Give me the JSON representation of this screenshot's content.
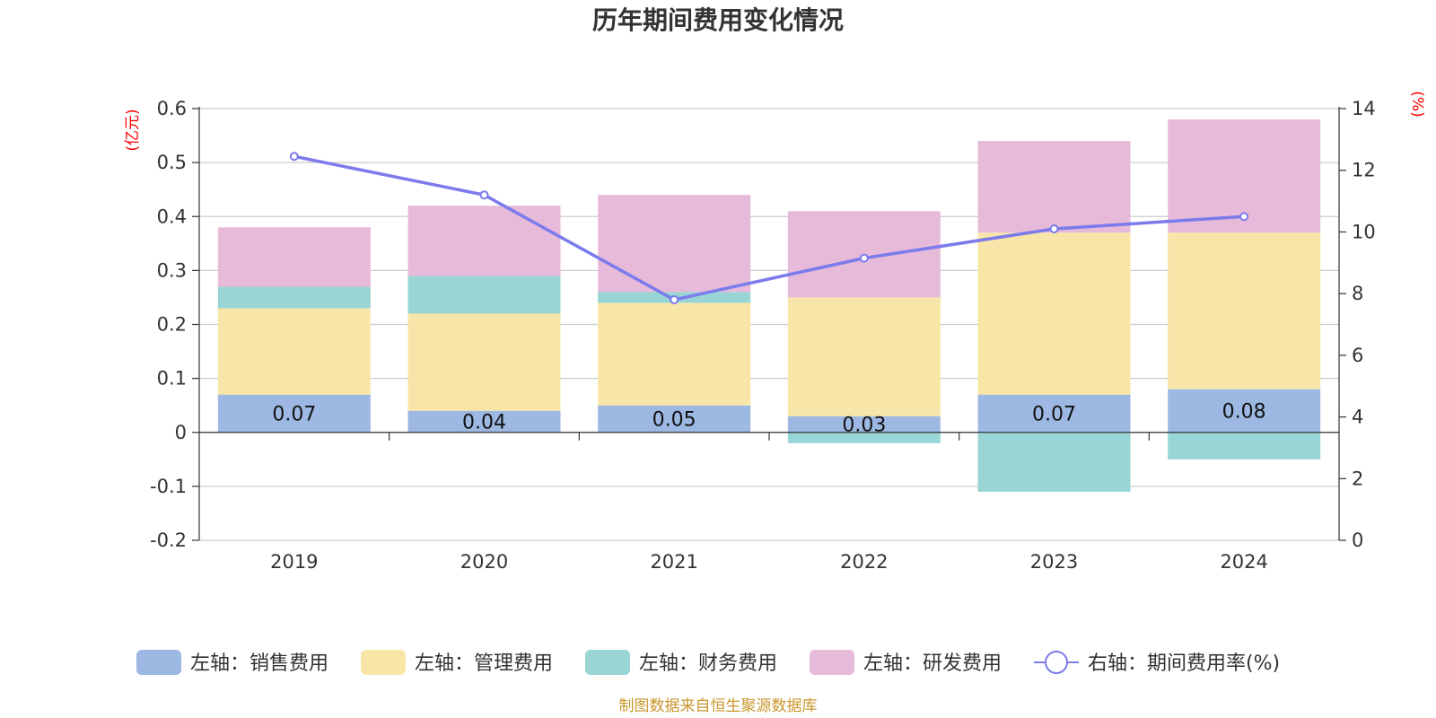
{
  "chart_data": {
    "type": "bar",
    "title": "历年期间费用变化情况",
    "categories": [
      "2019",
      "2020",
      "2021",
      "2022",
      "2023",
      "2024"
    ],
    "left_axis": {
      "unit": "(亿元)",
      "ylim": [
        -0.2,
        0.6
      ],
      "ticks": [
        -0.2,
        -0.1,
        0,
        0.1,
        0.2,
        0.3,
        0.4,
        0.5,
        0.6
      ],
      "tick_labels": [
        "-0.2",
        "-0.1",
        "0",
        "0.1",
        "0.2",
        "0.3",
        "0.4",
        "0.5",
        "0.6"
      ]
    },
    "right_axis": {
      "unit": "(%)",
      "ylim": [
        0,
        14
      ],
      "ticks": [
        0,
        2,
        4,
        6,
        8,
        10,
        12,
        14
      ],
      "tick_labels": [
        "0",
        "2",
        "4",
        "6",
        "8",
        "10",
        "12",
        "14"
      ]
    },
    "series": [
      {
        "name": "左轴：销售费用",
        "kind": "bar",
        "color": "#9db8e2",
        "values": [
          0.07,
          0.04,
          0.05,
          0.03,
          0.07,
          0.08
        ],
        "labels": [
          "0.07",
          "0.04",
          "0.05",
          "0.03",
          "0.07",
          "0.08"
        ]
      },
      {
        "name": "左轴：管理费用",
        "kind": "bar",
        "color": "#f8e6a8",
        "values": [
          0.16,
          0.18,
          0.19,
          0.22,
          0.3,
          0.29
        ]
      },
      {
        "name": "左轴：财务费用",
        "kind": "bar",
        "color": "#98d5d4",
        "values": [
          0.04,
          0.07,
          0.02,
          -0.02,
          -0.11,
          -0.05
        ]
      },
      {
        "name": "左轴：研发费用",
        "kind": "bar",
        "color": "#e8bada",
        "values": [
          0.11,
          0.13,
          0.18,
          0.16,
          0.17,
          0.21
        ]
      },
      {
        "name": "右轴：期间费用率(%)",
        "kind": "line",
        "axis": "right",
        "color": "#7b7bec",
        "values": [
          12.45,
          11.2,
          7.8,
          9.15,
          10.1,
          10.5
        ]
      }
    ]
  },
  "source": "制图数据来自恒生聚源数据库"
}
